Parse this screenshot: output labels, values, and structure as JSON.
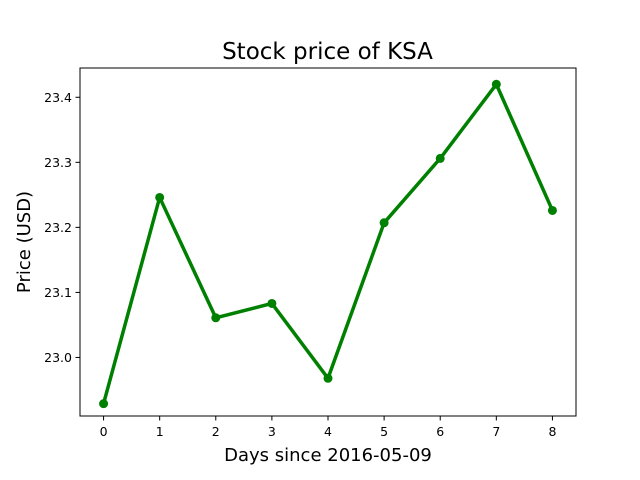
{
  "chart_data": {
    "type": "line",
    "title": "Stock price of KSA",
    "xlabel": "Days since 2016-05-09",
    "ylabel": "Price (USD)",
    "x": [
      0,
      1,
      2,
      3,
      4,
      5,
      6,
      7,
      8
    ],
    "x_ticks": [
      "0",
      "1",
      "2",
      "3",
      "4",
      "5",
      "6",
      "7",
      "8"
    ],
    "y_ticks": [
      "23.0",
      "23.1",
      "23.2",
      "23.3",
      "23.4"
    ],
    "xlim": [
      -0.42,
      8.42
    ],
    "ylim": [
      22.91,
      23.445
    ],
    "series": [
      {
        "values": [
          22.929,
          23.246,
          23.061,
          23.083,
          22.968,
          23.207,
          23.306,
          23.42,
          23.226
        ],
        "color": "#008000",
        "marker": "circle"
      }
    ],
    "grid": false,
    "legend": "none"
  }
}
